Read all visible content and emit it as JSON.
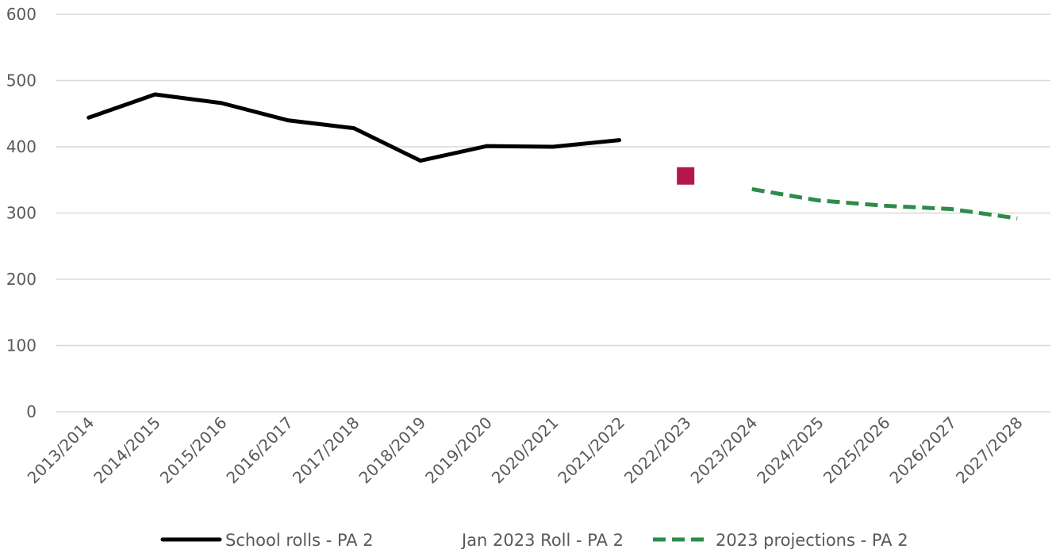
{
  "chart_data": {
    "type": "line",
    "categories": [
      "2013/2014",
      "2014/2015",
      "2015/2016",
      "2016/2017",
      "2017/2018",
      "2018/2019",
      "2019/2020",
      "2020/2021",
      "2021/2022",
      "2022/2023",
      "2023/2024",
      "2024/2025",
      "2025/2026",
      "2026/2027",
      "2027/2028"
    ],
    "ylim": [
      0,
      600
    ],
    "yticks": [
      "0",
      "100",
      "200",
      "300",
      "400",
      "500",
      "600"
    ],
    "grid": true,
    "legend_position": "bottom",
    "series": [
      {
        "name": "School rolls - PA 2",
        "style": "solid",
        "color": "#000000",
        "values": [
          444,
          479,
          466,
          440,
          428,
          379,
          401,
          400,
          410,
          null,
          null,
          null,
          null,
          null,
          null
        ]
      },
      {
        "name": "Jan 2023 Roll - PA 2",
        "style": "marker",
        "color": "#B5174B",
        "values": [
          null,
          null,
          null,
          null,
          null,
          null,
          null,
          null,
          null,
          356,
          null,
          null,
          null,
          null,
          null
        ]
      },
      {
        "name": "2023 projections - PA 2",
        "style": "dashed",
        "color": "#2E8B4A",
        "values": [
          null,
          null,
          null,
          null,
          null,
          null,
          null,
          null,
          null,
          null,
          336,
          319,
          311,
          306,
          292
        ]
      }
    ]
  }
}
